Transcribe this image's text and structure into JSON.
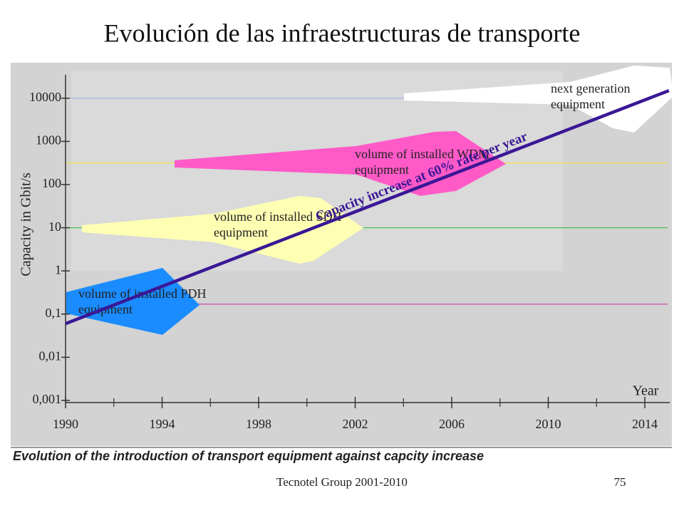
{
  "title": "Evolución de las infraestructuras de transporte",
  "chart_data": {
    "type": "line",
    "ylabel": "Capacity in Gbit/s",
    "xlabel": "Year",
    "log_y": true,
    "xlim": [
      1990,
      2014
    ],
    "xticks": [
      1990,
      1994,
      1998,
      2002,
      2006,
      2010,
      2014
    ],
    "ylim": [
      0.001,
      50000
    ],
    "yticks": [
      10000,
      1000,
      100,
      10,
      1,
      {
        "value": 0.1,
        "label": "0,1"
      },
      {
        "value": 0.01,
        "label": "0,01"
      },
      {
        "value": 0.001,
        "label": "0,001"
      }
    ],
    "series": [
      {
        "name": "Capacity increase at 60% rate per year",
        "color": "#3a1796",
        "x": [
          1990,
          2015
        ],
        "values": [
          0.06,
          15000
        ]
      }
    ],
    "reference_lines": [
      {
        "value": 10000,
        "color": "#a9b7ee"
      },
      {
        "value": 316,
        "color": "#f2e24a"
      },
      {
        "value": 10,
        "color": "#4cc24c"
      },
      {
        "value": 0.17,
        "color": "#c44cb0"
      }
    ],
    "annotations": [
      "volume of installed PDH equipment",
      "volume of installed SDH equipment",
      "volume of installed WDM equipment",
      "next generation equipment"
    ],
    "caption": "Evolution of the introduction of transport equipment against capcity increase"
  },
  "footer": {
    "left": "Tecnotel Group 2001-2010",
    "page": "75"
  }
}
